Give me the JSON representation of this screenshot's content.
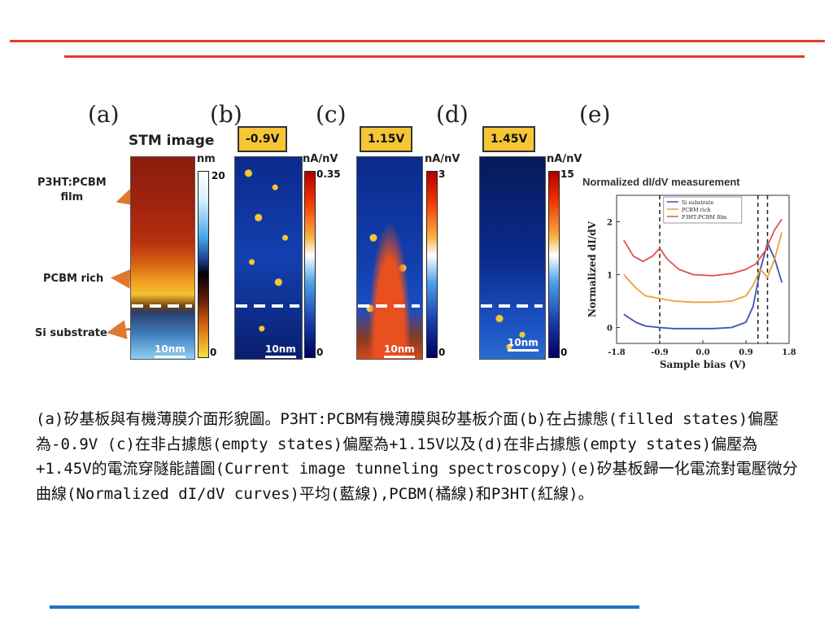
{
  "figure": {
    "panel_labels": [
      "(a)",
      "(b)",
      "(c)",
      "(d)",
      "(e)"
    ],
    "a": {
      "title": "STM image",
      "unit": "nm",
      "cbar_max": "20",
      "cbar_min": "0",
      "scale": "10nm",
      "labels": [
        "P3HT:PCBM\nfilm",
        "PCBM rich",
        "Si substrate"
      ]
    },
    "b": {
      "bias": "-0.9V",
      "unit": "nA/nV",
      "cbar_max": "0.35",
      "cbar_min": "0",
      "scale": "10nm"
    },
    "c": {
      "bias": "1.15V",
      "unit": "nA/nV",
      "cbar_max": "3",
      "cbar_min": "0",
      "scale": "10nm"
    },
    "d": {
      "bias": "1.45V",
      "unit": "nA/nV",
      "cbar_max": "15",
      "cbar_min": "0",
      "scale": "10nm"
    }
  },
  "chart_data": {
    "type": "line",
    "title": "Normalized dI/dV measurement",
    "xlabel": "Sample bias (V)",
    "ylabel": "Normalized dI/dV",
    "xlim": [
      -1.8,
      1.8
    ],
    "ylim": [
      -0.3,
      2.5
    ],
    "x_ticks": [
      "-1.8",
      "-0.9",
      "0.0",
      "0.9",
      "1.8"
    ],
    "y_ticks": [
      "0",
      "1",
      "2"
    ],
    "grid": false,
    "legend_position": "top",
    "vlines": [
      -0.9,
      1.15,
      1.35
    ],
    "series": [
      {
        "name": "Si substrate",
        "color": "#3f51b5",
        "x": [
          -1.65,
          -1.4,
          -1.2,
          -0.9,
          -0.6,
          -0.2,
          0.2,
          0.6,
          0.9,
          1.05,
          1.2,
          1.35,
          1.5,
          1.65
        ],
        "y": [
          0.25,
          0.1,
          0.03,
          0.0,
          -0.02,
          -0.02,
          -0.02,
          0.0,
          0.1,
          0.4,
          1.1,
          1.6,
          1.3,
          0.85
        ]
      },
      {
        "name": "PCBM rich",
        "color": "#e8a33c",
        "x": [
          -1.65,
          -1.4,
          -1.2,
          -0.9,
          -0.6,
          -0.2,
          0.2,
          0.6,
          0.9,
          1.05,
          1.2,
          1.35,
          1.5,
          1.65
        ],
        "y": [
          1.0,
          0.75,
          0.6,
          0.55,
          0.5,
          0.48,
          0.48,
          0.5,
          0.6,
          0.8,
          1.1,
          0.95,
          1.3,
          1.8
        ]
      },
      {
        "name": "P3HT:PCBM film",
        "color": "#e05050",
        "x": [
          -1.65,
          -1.45,
          -1.25,
          -1.05,
          -0.9,
          -0.75,
          -0.5,
          -0.2,
          0.2,
          0.6,
          0.9,
          1.1,
          1.3,
          1.5,
          1.65
        ],
        "y": [
          1.65,
          1.35,
          1.25,
          1.35,
          1.5,
          1.3,
          1.1,
          1.0,
          0.98,
          1.02,
          1.1,
          1.2,
          1.45,
          1.85,
          2.05
        ]
      }
    ]
  },
  "caption": "(a)矽基板與有機薄膜介面形貌圖。P3HT:PCBM有機薄膜與矽基板介面(b)在占據態(filled states)偏壓為-0.9V (c)在非占據態(empty states)偏壓為+1.15V以及(d)在非占據態(empty states)偏壓為+1.45V的電流穿隧能譜圖(Current image tunneling spectroscopy)(e)矽基板歸一化電流對電壓微分曲線(Normalized dI/dV curves)平均(藍線),PCBM(橘線)和P3HT(紅線)。"
}
